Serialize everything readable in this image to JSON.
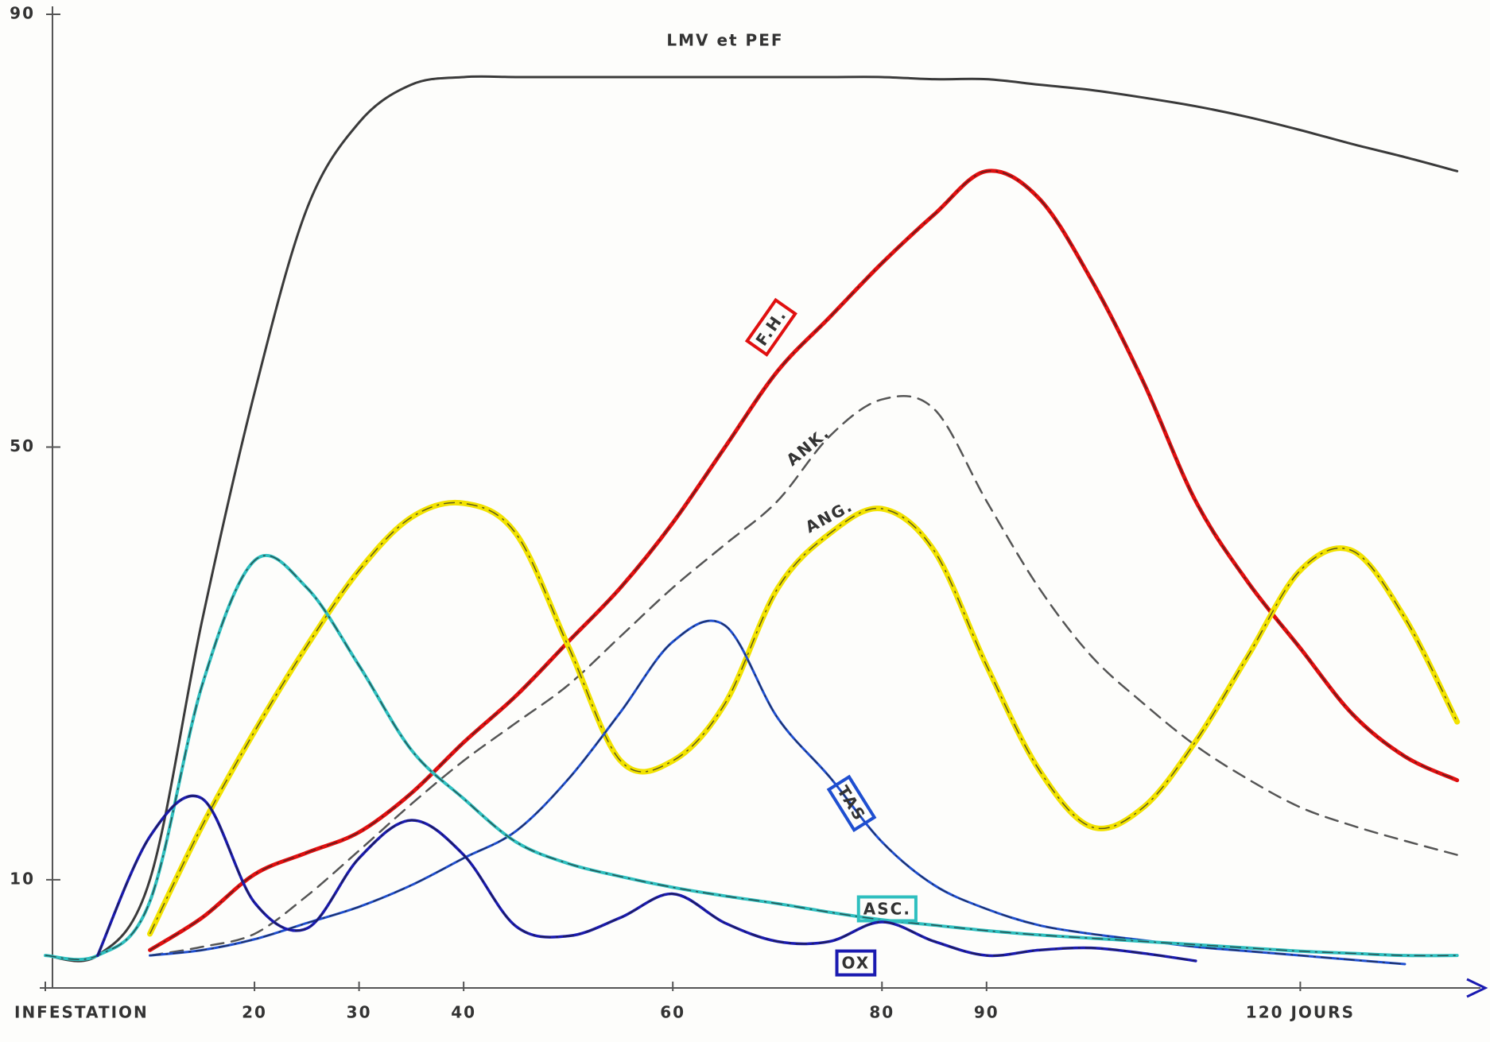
{
  "chart_data": {
    "type": "line",
    "x": [
      0,
      5,
      10,
      15,
      20,
      25,
      30,
      35,
      40,
      45,
      50,
      55,
      60,
      65,
      70,
      75,
      80,
      85,
      90,
      95,
      100,
      105,
      110,
      115,
      120,
      125,
      130,
      135
    ],
    "xlim": [
      0,
      137
    ],
    "ylim": [
      0,
      90
    ],
    "xticks": [
      {
        "value": 0,
        "label": "INFESTATION"
      },
      20,
      30,
      40,
      60,
      80,
      90,
      {
        "value": 120,
        "label": "120 JOURS"
      }
    ],
    "yticks": [
      10,
      50,
      90
    ],
    "series": [
      {
        "name": "LMV et PEF",
        "color": "#3a3a3a",
        "style": "solid",
        "values": [
          3,
          3,
          10,
          34,
          55,
          72,
          80,
          83.5,
          84.2,
          84.2,
          84.2,
          84.2,
          84.2,
          84.2,
          84.2,
          84.2,
          84.2,
          84,
          84,
          83.5,
          83,
          82.3,
          81.5,
          80.5,
          79.3,
          78,
          76.8,
          75.5
        ]
      },
      {
        "name": "F.H.",
        "color": "#e01010",
        "style": "solid",
        "values": [
          null,
          null,
          3.5,
          6.5,
          10.5,
          12.5,
          14.4,
          18,
          22.7,
          27,
          32,
          37,
          43,
          50,
          57,
          62,
          67,
          71.5,
          75.5,
          73,
          65.5,
          56,
          45,
          37.5,
          31.4,
          25.3,
          21.4,
          19.2
        ]
      },
      {
        "name": "ANK.",
        "color": "#555555",
        "style": "dashed",
        "values": [
          null,
          null,
          3,
          3.8,
          5,
          8.5,
          12.7,
          17,
          21,
          24.5,
          28,
          32.5,
          37,
          41,
          45,
          51,
          54.4,
          53.5,
          45,
          37,
          30.7,
          26.3,
          22.4,
          19.3,
          16.7,
          15,
          13.6,
          12.3
        ]
      },
      {
        "name": "ANG.",
        "color": "#f2e200",
        "style": "solid",
        "values": [
          null,
          null,
          5,
          15,
          23.7,
          31.6,
          38.6,
          43.5,
          44.8,
          42,
          31.6,
          21,
          21,
          26.3,
          36.9,
          42,
          44.3,
          40.4,
          29.8,
          20.2,
          14.9,
          16.7,
          22.8,
          30.7,
          38.6,
          40.4,
          34.2,
          24.6
        ]
      },
      {
        "name": "TAS",
        "color": "#1f4fd0",
        "style": "solid",
        "values": [
          null,
          null,
          3,
          3.5,
          4.5,
          6,
          7.5,
          9.5,
          12,
          14.5,
          19.3,
          25.5,
          32,
          33.5,
          25,
          19.5,
          13.5,
          9.5,
          7.3,
          5.8,
          5,
          4.4,
          3.8,
          3.4,
          3,
          2.6,
          2.2,
          null
        ]
      },
      {
        "name": "ASC.",
        "color": "#2fbfbf",
        "style": "solid",
        "values": [
          3,
          3,
          8,
          28,
          39.5,
          37,
          29.8,
          22,
          17.5,
          13.5,
          11.5,
          10.3,
          9.3,
          8.5,
          7.8,
          7,
          6.3,
          5.8,
          5.3,
          4.9,
          4.6,
          4.3,
          4,
          3.7,
          3.4,
          3.2,
          3,
          3
        ]
      },
      {
        "name": "OX",
        "color": "#1a1ab0",
        "style": "solid",
        "values": [
          null,
          3,
          14,
          17.5,
          7.9,
          5.5,
          12,
          15.5,
          12.3,
          5.7,
          4.8,
          6.5,
          8.7,
          6,
          4.3,
          4.3,
          6.1,
          4.3,
          3,
          3.5,
          3.7,
          3.2,
          2.5,
          null,
          null,
          null,
          null,
          null
        ]
      }
    ]
  }
}
